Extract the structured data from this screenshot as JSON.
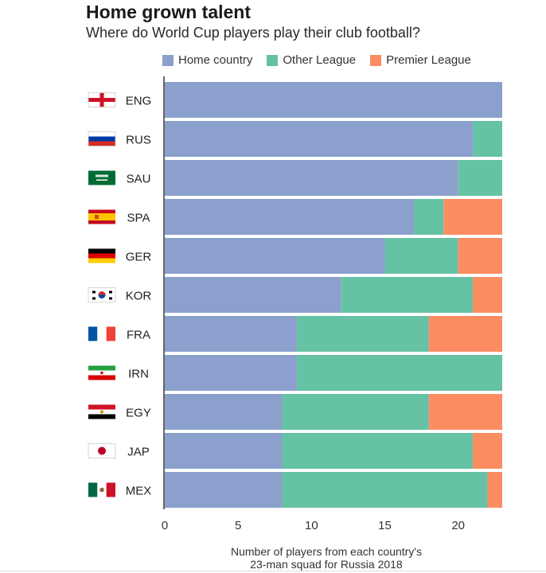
{
  "title": "Home grown talent",
  "subtitle": "Where do World Cup players play their club football?",
  "colors": {
    "home": "#8ba0cc",
    "other": "#66c2a5",
    "premier": "#fc8d62",
    "axis": "#333333"
  },
  "chart_data": {
    "type": "bar",
    "orientation": "horizontal",
    "stacked": true,
    "categories": [
      "ENG",
      "RUS",
      "SAU",
      "SPA",
      "GER",
      "KOR",
      "FRA",
      "IRN",
      "EGY",
      "JAP",
      "MEX"
    ],
    "series": [
      {
        "name": "Home country",
        "color": "#8ba0cc",
        "values": [
          23,
          21,
          20,
          17,
          15,
          12,
          9,
          9,
          8,
          8,
          8
        ]
      },
      {
        "name": "Other League",
        "color": "#66c2a5",
        "values": [
          0,
          2,
          3,
          2,
          5,
          9,
          9,
          14,
          10,
          13,
          14
        ]
      },
      {
        "name": "Premier League",
        "color": "#fc8d62",
        "values": [
          0,
          0,
          0,
          4,
          3,
          2,
          5,
          0,
          5,
          2,
          1
        ]
      }
    ],
    "xlim": [
      0,
      23
    ],
    "xticks": [
      0,
      5,
      10,
      15,
      20
    ],
    "xlabel_lines": [
      "Number of players from each country's",
      "23-man squad for Russia 2018"
    ],
    "legend_position": "top",
    "grid": false,
    "flags": [
      "england-flag",
      "russia-flag",
      "saudi-arabia-flag",
      "spain-flag",
      "germany-flag",
      "south-korea-flag",
      "france-flag",
      "iran-flag",
      "egypt-flag",
      "japan-flag",
      "mexico-flag"
    ]
  }
}
